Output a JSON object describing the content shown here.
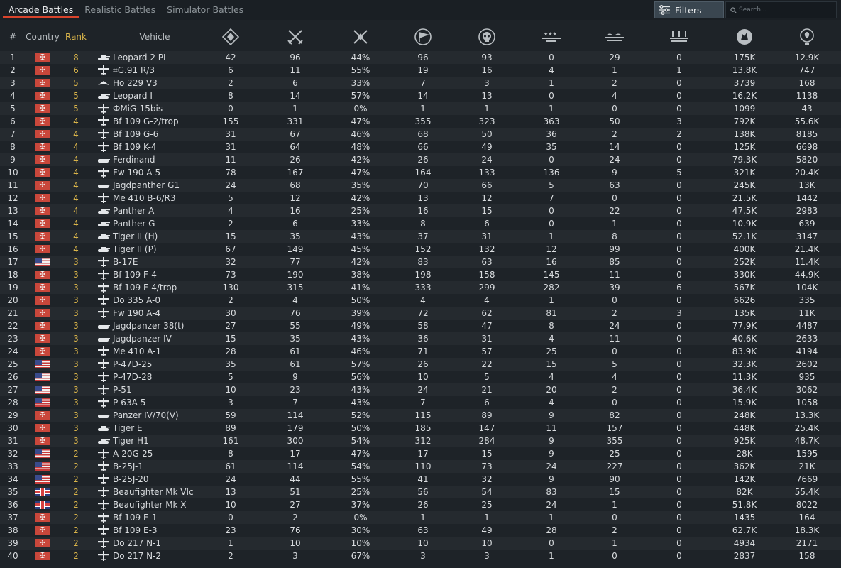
{
  "tabs": [
    "Arcade Battles",
    "Realistic Battles",
    "Simulator Battles"
  ],
  "filters_label": "Filters",
  "search_placeholder": "Search...",
  "headers": {
    "num": "#",
    "country": "Country",
    "rank": "Rank",
    "vehicle": "Vehicle"
  },
  "stat_columns": [
    {
      "icon": "battles-icon"
    },
    {
      "icon": "victories-icon"
    },
    {
      "icon": "win-rate-icon"
    },
    {
      "icon": "respawns-icon"
    },
    {
      "icon": "deaths-icon"
    },
    {
      "icon": "air-kills-icon"
    },
    {
      "icon": "ground-kills-icon"
    },
    {
      "icon": "naval-kills-icon"
    },
    {
      "icon": "research-points-icon"
    },
    {
      "icon": "silver-lions-icon"
    }
  ],
  "rows": [
    {
      "n": "1",
      "c": "germany",
      "r": "8",
      "t": "tank",
      "v": "Leopard 2 PL",
      "s": [
        "42",
        "96",
        "44%",
        "96",
        "93",
        "0",
        "29",
        "0",
        "175K",
        "12.9K"
      ]
    },
    {
      "n": "2",
      "c": "germany",
      "r": "6",
      "t": "plane",
      "v": "⌗G.91 R/3",
      "s": [
        "6",
        "11",
        "55%",
        "19",
        "16",
        "4",
        "1",
        "1",
        "13.8K",
        "747"
      ]
    },
    {
      "n": "3",
      "c": "germany",
      "r": "5",
      "t": "flyingwing",
      "v": "Ho 229 V3",
      "s": [
        "2",
        "6",
        "33%",
        "7",
        "3",
        "1",
        "2",
        "0",
        "3739",
        "168"
      ]
    },
    {
      "n": "4",
      "c": "germany",
      "r": "5",
      "t": "tank",
      "v": "Leopard I",
      "s": [
        "8",
        "14",
        "57%",
        "14",
        "13",
        "0",
        "4",
        "0",
        "16.2K",
        "1138"
      ]
    },
    {
      "n": "5",
      "c": "germany",
      "r": "5",
      "t": "plane",
      "v": "ФMiG-15bis",
      "s": [
        "0",
        "1",
        "0%",
        "1",
        "1",
        "1",
        "0",
        "0",
        "1099",
        "43"
      ]
    },
    {
      "n": "6",
      "c": "germany",
      "r": "4",
      "t": "plane",
      "v": "Bf 109 G-2/trop",
      "s": [
        "155",
        "331",
        "47%",
        "355",
        "323",
        "363",
        "50",
        "3",
        "792K",
        "55.6K"
      ]
    },
    {
      "n": "7",
      "c": "germany",
      "r": "4",
      "t": "plane",
      "v": "Bf 109 G-6",
      "s": [
        "31",
        "67",
        "46%",
        "68",
        "50",
        "36",
        "2",
        "2",
        "138K",
        "8185"
      ]
    },
    {
      "n": "8",
      "c": "germany",
      "r": "4",
      "t": "plane",
      "v": "Bf 109 K-4",
      "s": [
        "31",
        "64",
        "48%",
        "66",
        "49",
        "35",
        "14",
        "0",
        "125K",
        "6698"
      ]
    },
    {
      "n": "9",
      "c": "germany",
      "r": "4",
      "t": "td",
      "v": "Ferdinand",
      "s": [
        "11",
        "26",
        "42%",
        "26",
        "24",
        "0",
        "24",
        "0",
        "79.3K",
        "5820"
      ]
    },
    {
      "n": "10",
      "c": "germany",
      "r": "4",
      "t": "plane",
      "v": "Fw 190 A-5",
      "s": [
        "78",
        "167",
        "47%",
        "164",
        "133",
        "136",
        "9",
        "5",
        "321K",
        "20.4K"
      ]
    },
    {
      "n": "11",
      "c": "germany",
      "r": "4",
      "t": "td",
      "v": "Jagdpanther G1",
      "s": [
        "24",
        "68",
        "35%",
        "70",
        "66",
        "5",
        "63",
        "0",
        "245K",
        "13K"
      ]
    },
    {
      "n": "12",
      "c": "germany",
      "r": "4",
      "t": "plane",
      "v": "Me 410 B-6/R3",
      "s": [
        "5",
        "12",
        "42%",
        "13",
        "12",
        "7",
        "0",
        "0",
        "21.5K",
        "1442"
      ]
    },
    {
      "n": "13",
      "c": "germany",
      "r": "4",
      "t": "tank",
      "v": "Panther A",
      "s": [
        "4",
        "16",
        "25%",
        "16",
        "15",
        "0",
        "22",
        "0",
        "47.5K",
        "2983"
      ]
    },
    {
      "n": "14",
      "c": "germany",
      "r": "4",
      "t": "tank",
      "v": "Panther G",
      "s": [
        "2",
        "6",
        "33%",
        "8",
        "6",
        "0",
        "1",
        "0",
        "10.9K",
        "639"
      ]
    },
    {
      "n": "15",
      "c": "germany",
      "r": "4",
      "t": "tank",
      "v": "Tiger II (H)",
      "s": [
        "15",
        "35",
        "43%",
        "37",
        "31",
        "1",
        "8",
        "0",
        "52.1K",
        "3147"
      ]
    },
    {
      "n": "16",
      "c": "germany",
      "r": "4",
      "t": "tank",
      "v": "Tiger II (P)",
      "s": [
        "67",
        "149",
        "45%",
        "152",
        "132",
        "12",
        "99",
        "0",
        "400K",
        "21.4K"
      ]
    },
    {
      "n": "17",
      "c": "usa",
      "r": "3",
      "t": "plane",
      "v": "B-17E",
      "s": [
        "32",
        "77",
        "42%",
        "83",
        "63",
        "16",
        "85",
        "0",
        "252K",
        "11.4K"
      ]
    },
    {
      "n": "18",
      "c": "germany",
      "r": "3",
      "t": "plane",
      "v": "Bf 109 F-4",
      "s": [
        "73",
        "190",
        "38%",
        "198",
        "158",
        "145",
        "11",
        "0",
        "330K",
        "44.9K"
      ]
    },
    {
      "n": "19",
      "c": "germany",
      "r": "3",
      "t": "plane",
      "v": "Bf 109 F-4/trop",
      "s": [
        "130",
        "315",
        "41%",
        "333",
        "299",
        "282",
        "39",
        "6",
        "567K",
        "104K"
      ]
    },
    {
      "n": "20",
      "c": "germany",
      "r": "3",
      "t": "plane",
      "v": "Do 335 A-0",
      "s": [
        "2",
        "4",
        "50%",
        "4",
        "4",
        "1",
        "0",
        "0",
        "6626",
        "335"
      ]
    },
    {
      "n": "21",
      "c": "germany",
      "r": "3",
      "t": "plane",
      "v": "Fw 190 A-4",
      "s": [
        "30",
        "76",
        "39%",
        "72",
        "62",
        "81",
        "2",
        "3",
        "135K",
        "11K"
      ]
    },
    {
      "n": "22",
      "c": "germany",
      "r": "3",
      "t": "td",
      "v": "Jagdpanzer 38(t)",
      "s": [
        "27",
        "55",
        "49%",
        "58",
        "47",
        "8",
        "24",
        "0",
        "77.9K",
        "4487"
      ]
    },
    {
      "n": "23",
      "c": "germany",
      "r": "3",
      "t": "td",
      "v": "Jagdpanzer IV",
      "s": [
        "15",
        "35",
        "43%",
        "36",
        "31",
        "4",
        "11",
        "0",
        "40.6K",
        "2633"
      ]
    },
    {
      "n": "24",
      "c": "germany",
      "r": "3",
      "t": "plane",
      "v": "Me 410 A-1",
      "s": [
        "28",
        "61",
        "46%",
        "71",
        "57",
        "25",
        "0",
        "0",
        "83.9K",
        "4194"
      ]
    },
    {
      "n": "25",
      "c": "usa",
      "r": "3",
      "t": "plane",
      "v": "P-47D-25",
      "s": [
        "35",
        "61",
        "57%",
        "26",
        "22",
        "15",
        "5",
        "0",
        "32.3K",
        "2602"
      ]
    },
    {
      "n": "26",
      "c": "usa",
      "r": "3",
      "t": "plane",
      "v": "P-47D-28",
      "s": [
        "5",
        "9",
        "56%",
        "10",
        "5",
        "4",
        "4",
        "0",
        "11.3K",
        "935"
      ]
    },
    {
      "n": "27",
      "c": "usa",
      "r": "3",
      "t": "plane",
      "v": "P-51",
      "s": [
        "10",
        "23",
        "43%",
        "24",
        "21",
        "20",
        "2",
        "0",
        "36.4K",
        "3062"
      ]
    },
    {
      "n": "28",
      "c": "usa",
      "r": "3",
      "t": "plane",
      "v": "P-63A-5",
      "s": [
        "3",
        "7",
        "43%",
        "7",
        "6",
        "4",
        "0",
        "0",
        "15.9K",
        "1058"
      ]
    },
    {
      "n": "29",
      "c": "germany",
      "r": "3",
      "t": "td",
      "v": "Panzer IV/70(V)",
      "s": [
        "59",
        "114",
        "52%",
        "115",
        "89",
        "9",
        "82",
        "0",
        "248K",
        "13.3K"
      ]
    },
    {
      "n": "30",
      "c": "germany",
      "r": "3",
      "t": "tank",
      "v": "Tiger E",
      "s": [
        "89",
        "179",
        "50%",
        "185",
        "147",
        "11",
        "157",
        "0",
        "448K",
        "25.4K"
      ]
    },
    {
      "n": "31",
      "c": "germany",
      "r": "3",
      "t": "tank",
      "v": "Tiger H1",
      "s": [
        "161",
        "300",
        "54%",
        "312",
        "284",
        "9",
        "355",
        "0",
        "925K",
        "48.7K"
      ]
    },
    {
      "n": "32",
      "c": "usa",
      "r": "2",
      "t": "plane",
      "v": "A-20G-25",
      "s": [
        "8",
        "17",
        "47%",
        "17",
        "15",
        "9",
        "25",
        "0",
        "28K",
        "1595"
      ]
    },
    {
      "n": "33",
      "c": "usa",
      "r": "2",
      "t": "plane",
      "v": "B-25J-1",
      "s": [
        "61",
        "114",
        "54%",
        "110",
        "73",
        "24",
        "227",
        "0",
        "362K",
        "21K"
      ]
    },
    {
      "n": "34",
      "c": "usa",
      "r": "2",
      "t": "plane",
      "v": "B-25J-20",
      "s": [
        "24",
        "44",
        "55%",
        "41",
        "32",
        "9",
        "90",
        "0",
        "142K",
        "7669"
      ]
    },
    {
      "n": "35",
      "c": "uk",
      "r": "2",
      "t": "plane",
      "v": "Beaufighter Mk VIc",
      "s": [
        "13",
        "51",
        "25%",
        "56",
        "54",
        "83",
        "15",
        "0",
        "82K",
        "55.4K"
      ]
    },
    {
      "n": "36",
      "c": "uk",
      "r": "2",
      "t": "plane",
      "v": "Beaufighter Mk X",
      "s": [
        "10",
        "27",
        "37%",
        "26",
        "25",
        "24",
        "1",
        "0",
        "51.8K",
        "8022"
      ]
    },
    {
      "n": "37",
      "c": "germany",
      "r": "2",
      "t": "plane",
      "v": "Bf 109 E-1",
      "s": [
        "0",
        "2",
        "0%",
        "1",
        "1",
        "1",
        "0",
        "0",
        "1435",
        "164"
      ]
    },
    {
      "n": "38",
      "c": "germany",
      "r": "2",
      "t": "plane",
      "v": "Bf 109 E-3",
      "s": [
        "23",
        "76",
        "30%",
        "63",
        "49",
        "28",
        "2",
        "0",
        "62.7K",
        "18.3K"
      ]
    },
    {
      "n": "39",
      "c": "germany",
      "r": "2",
      "t": "plane",
      "v": "Do 217 N-1",
      "s": [
        "1",
        "10",
        "10%",
        "10",
        "10",
        "0",
        "1",
        "0",
        "4934",
        "2171"
      ]
    },
    {
      "n": "40",
      "c": "germany",
      "r": "2",
      "t": "plane",
      "v": "Do 217 N-2",
      "s": [
        "2",
        "3",
        "67%",
        "3",
        "3",
        "1",
        "0",
        "0",
        "2837",
        "158"
      ]
    }
  ]
}
